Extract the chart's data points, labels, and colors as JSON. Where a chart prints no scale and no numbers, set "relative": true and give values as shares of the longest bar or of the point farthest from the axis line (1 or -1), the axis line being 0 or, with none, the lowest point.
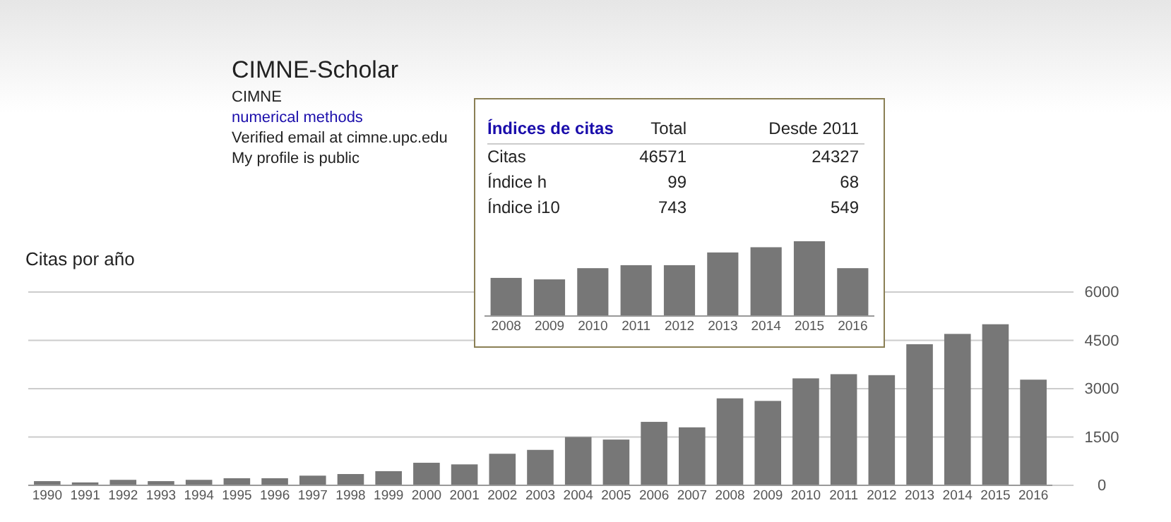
{
  "chart_data": [
    {
      "type": "other",
      "title": "CIMNE-Scholar",
      "annotations": [
        "CIMNE",
        "numerical methods",
        "Verified email at cimne.upc.edu",
        "My profile is public"
      ]
    },
    {
      "type": "bar",
      "title": "Citas por año",
      "categories": [
        "1990",
        "1991",
        "1992",
        "1993",
        "1994",
        "1995",
        "1996",
        "1997",
        "1998",
        "1999",
        "2000",
        "2001",
        "2002",
        "2003",
        "2004",
        "2005",
        "2006",
        "2007",
        "2008",
        "2009",
        "2010",
        "2011",
        "2012",
        "2013",
        "2014",
        "2015",
        "2016"
      ],
      "series": [
        {
          "color": "#777777",
          "values": [
            130,
            90,
            170,
            130,
            170,
            220,
            220,
            300,
            350,
            440,
            700,
            650,
            980,
            1100,
            1500,
            1420,
            1970,
            1800,
            2700,
            2620,
            3320,
            3450,
            3420,
            4380,
            4700,
            5000,
            3280
          ]
        }
      ],
      "ylim": [
        0,
        6000
      ],
      "yticks": [
        0,
        1500,
        3000,
        4500,
        6000
      ],
      "grid": "y"
    },
    {
      "type": "bar",
      "relative": true,
      "categories": [
        "2008",
        "2009",
        "2010",
        "2011",
        "2012",
        "2013",
        "2014",
        "2015",
        "2016"
      ],
      "series": [
        {
          "color": "#777777",
          "values": [
            0.51,
            0.49,
            0.64,
            0.68,
            0.68,
            0.85,
            0.92,
            1,
            0.64
          ]
        }
      ],
      "annotations": [
        "Índices de citas",
        "Total",
        "Desde 2011",
        "Citas",
        "46571",
        "24327",
        "Índice h",
        "99",
        "68",
        "Índice i10",
        "743",
        "549"
      ]
    }
  ]
}
